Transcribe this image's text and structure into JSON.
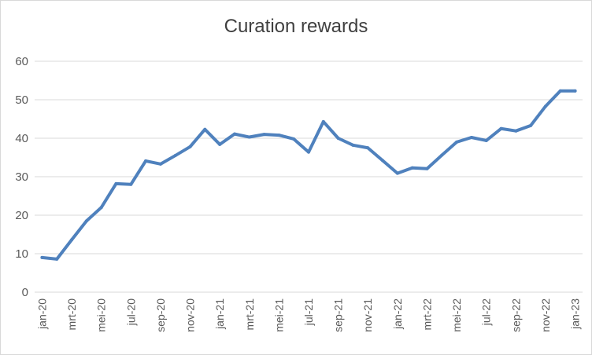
{
  "chart_data": {
    "type": "line",
    "title": "Curation rewards",
    "xlabel": "",
    "ylabel": "",
    "ylim": [
      0,
      60
    ],
    "yticks": [
      0,
      10,
      20,
      30,
      40,
      50,
      60
    ],
    "grid": true,
    "legend": "none",
    "x": [
      "jan-20",
      "feb-20",
      "mrt-20",
      "apr-20",
      "mei-20",
      "jun-20",
      "jul-20",
      "aug-20",
      "sep-20",
      "okt-20",
      "nov-20",
      "dec-20",
      "jan-21",
      "feb-21",
      "mrt-21",
      "apr-21",
      "mei-21",
      "jun-21",
      "jul-21",
      "aug-21",
      "sep-21",
      "okt-21",
      "nov-21",
      "dec-21",
      "jan-22",
      "feb-22",
      "mrt-22",
      "apr-22",
      "mei-22",
      "jun-22",
      "jul-22",
      "aug-22",
      "sep-22",
      "okt-22",
      "nov-22",
      "dec-22",
      "jan-23"
    ],
    "xtick_labels": [
      "jan-20",
      "mrt-20",
      "mei-20",
      "jul-20",
      "sep-20",
      "nov-20",
      "jan-21",
      "mrt-21",
      "mei-21",
      "jul-21",
      "sep-21",
      "nov-21",
      "jan-22",
      "mrt-22",
      "mei-22",
      "jul-22",
      "sep-22",
      "nov-22",
      "jan-23"
    ],
    "series": [
      {
        "color": "#4f81bd",
        "values": [
          9.0,
          8.6,
          13.6,
          18.5,
          22.0,
          28.2,
          28.0,
          34.1,
          33.3,
          35.5,
          37.8,
          42.3,
          38.4,
          41.1,
          40.3,
          41.0,
          40.8,
          39.8,
          36.4,
          44.3,
          40.0,
          38.2,
          37.5,
          34.2,
          30.9,
          32.3,
          32.1,
          35.6,
          39.0,
          40.2,
          39.4,
          42.5,
          41.9,
          43.3,
          48.3,
          52.3,
          52.3
        ]
      }
    ]
  }
}
